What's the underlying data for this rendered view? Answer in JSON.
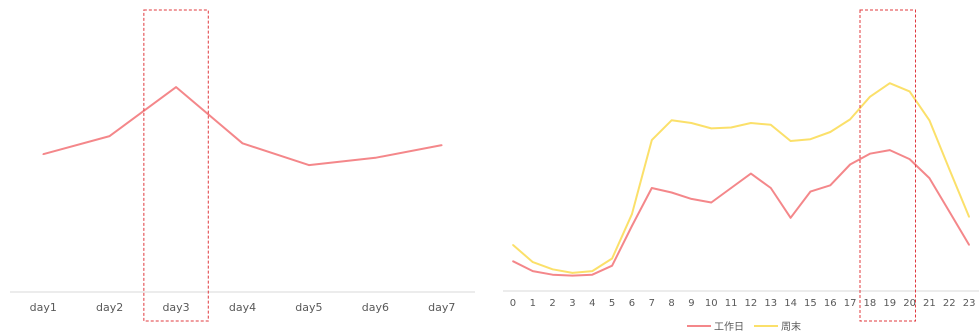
{
  "chart_data": [
    {
      "type": "line",
      "categories": [
        "day1",
        "day2",
        "day3",
        "day4",
        "day5",
        "day6",
        "day7"
      ],
      "series": [
        {
          "color": "#f4878a",
          "values": [
            152,
            172,
            226,
            164,
            140,
            148,
            162
          ]
        }
      ],
      "ylim": [
        0,
        300
      ],
      "grid": false,
      "highlight": {
        "category": "day3",
        "style": "dashed-box",
        "color": "#e0393e"
      }
    },
    {
      "type": "line",
      "categories": [
        "0",
        "1",
        "2",
        "3",
        "4",
        "5",
        "6",
        "7",
        "8",
        "9",
        "10",
        "11",
        "12",
        "13",
        "14",
        "15",
        "16",
        "17",
        "18",
        "19",
        "20",
        "21",
        "22",
        "23"
      ],
      "series": [
        {
          "name": "工作日",
          "color": "#f4878a",
          "values": [
            33,
            22,
            18,
            17,
            18,
            28,
            72,
            114,
            109,
            102,
            98,
            114,
            130,
            114,
            81,
            110,
            117,
            140,
            152,
            156,
            146,
            125,
            88,
            51
          ]
        },
        {
          "name": "周末",
          "color": "#fbe06a",
          "values": [
            51,
            32,
            24,
            20,
            22,
            36,
            85,
            167,
            189,
            186,
            180,
            181,
            186,
            184,
            166,
            168,
            176,
            190,
            215,
            230,
            221,
            189,
            135,
            82
          ]
        }
      ],
      "ylim": [
        0,
        300
      ],
      "grid": false,
      "legend": "bottom",
      "highlight": {
        "categories": [
          "18",
          "20"
        ],
        "style": "dashed-box",
        "color": "#e0393e"
      }
    }
  ]
}
